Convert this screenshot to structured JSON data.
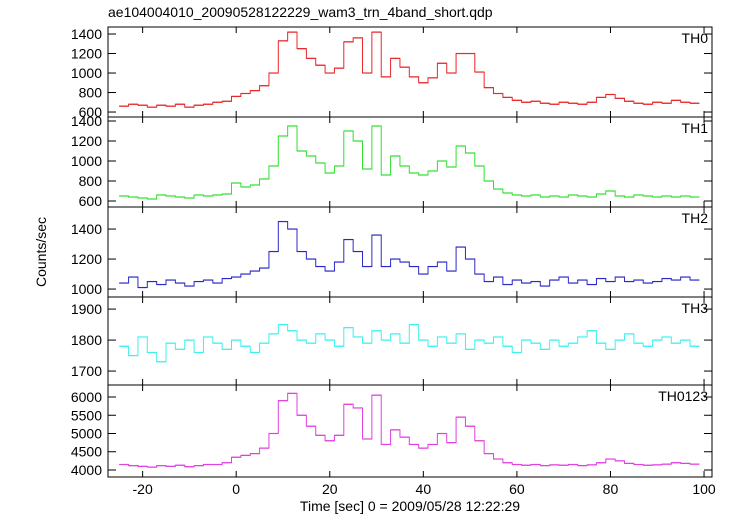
{
  "chart_data": {
    "type": "step",
    "title": "ae104004010_20090528122229_wam3_trn_4band_short.qdp",
    "x_label": "Time [sec] 0 = 2009/05/28 12:22:29",
    "y_label": "Counts/sec",
    "xlim": [
      -27.4,
      101.7
    ],
    "xticks": [
      -20,
      0,
      20,
      40,
      60,
      80,
      100
    ],
    "x": [
      -24,
      -22,
      -20,
      -18,
      -16,
      -14,
      -12,
      -10,
      -8,
      -6,
      -4,
      -2,
      0,
      2,
      4,
      6,
      8,
      10,
      12,
      14,
      16,
      18,
      20,
      22,
      24,
      26,
      28,
      30,
      32,
      34,
      36,
      38,
      40,
      42,
      44,
      46,
      48,
      50,
      52,
      54,
      56,
      58,
      60,
      62,
      64,
      66,
      68,
      70,
      72,
      74,
      76,
      78,
      80,
      82,
      84,
      86,
      88,
      90,
      92,
      94,
      96,
      98
    ],
    "panels": [
      {
        "name": "TH0",
        "color": "#e8282a",
        "ylim": [
          549,
          1472
        ],
        "yticks": [
          600,
          800,
          1000,
          1200,
          1400
        ],
        "values": [
          660,
          680,
          670,
          650,
          670,
          660,
          680,
          650,
          670,
          680,
          700,
          710,
          760,
          790,
          820,
          870,
          1000,
          1330,
          1420,
          1250,
          1150,
          1080,
          1000,
          1050,
          1320,
          1360,
          1000,
          1420,
          960,
          1150,
          1060,
          960,
          900,
          950,
          1100,
          1000,
          1200,
          1200,
          1010,
          850,
          790,
          750,
          720,
          700,
          710,
          690,
          680,
          700,
          690,
          680,
          700,
          750,
          780,
          740,
          710,
          690,
          680,
          700,
          690,
          720,
          700,
          690
        ]
      },
      {
        "name": "TH1",
        "color": "#2ee02e",
        "ylim": [
          540,
          1440
        ],
        "yticks": [
          600,
          800,
          1000,
          1200,
          1400
        ],
        "values": [
          650,
          640,
          630,
          620,
          660,
          650,
          640,
          630,
          660,
          650,
          660,
          670,
          780,
          740,
          760,
          820,
          950,
          1250,
          1350,
          1100,
          1050,
          980,
          880,
          950,
          1300,
          1200,
          920,
          1350,
          860,
          1050,
          950,
          880,
          860,
          900,
          1000,
          940,
          1150,
          1080,
          950,
          800,
          720,
          680,
          660,
          650,
          660,
          640,
          650,
          640,
          660,
          650,
          640,
          670,
          700,
          650,
          640,
          660,
          650,
          640,
          650,
          640,
          650,
          640
        ]
      },
      {
        "name": "TH2",
        "color": "#2a2ac8",
        "ylim": [
          947,
          1547
        ],
        "yticks": [
          1000,
          1200,
          1400
        ],
        "values": [
          1040,
          1080,
          1010,
          1050,
          1030,
          1060,
          1040,
          1020,
          1050,
          1060,
          1040,
          1070,
          1080,
          1100,
          1120,
          1140,
          1250,
          1450,
          1400,
          1250,
          1200,
          1150,
          1120,
          1180,
          1330,
          1250,
          1150,
          1360,
          1150,
          1200,
          1180,
          1150,
          1100,
          1150,
          1180,
          1120,
          1280,
          1200,
          1100,
          1050,
          1080,
          1030,
          1060,
          1040,
          1050,
          1020,
          1060,
          1080,
          1040,
          1060,
          1030,
          1070,
          1050,
          1080,
          1050,
          1060,
          1040,
          1050,
          1070,
          1060,
          1080,
          1060
        ]
      },
      {
        "name": "TH3",
        "color": "#3ef0f0",
        "ylim": [
          1655,
          1939
        ],
        "yticks": [
          1700,
          1800,
          1900
        ],
        "values": [
          1780,
          1750,
          1810,
          1760,
          1730,
          1790,
          1770,
          1800,
          1760,
          1810,
          1790,
          1770,
          1800,
          1780,
          1760,
          1790,
          1820,
          1850,
          1830,
          1800,
          1790,
          1820,
          1800,
          1780,
          1840,
          1810,
          1790,
          1830,
          1800,
          1820,
          1790,
          1850,
          1800,
          1780,
          1810,
          1790,
          1820,
          1770,
          1800,
          1790,
          1810,
          1780,
          1760,
          1800,
          1790,
          1770,
          1800,
          1780,
          1790,
          1810,
          1830,
          1790,
          1770,
          1800,
          1820,
          1790,
          1780,
          1800,
          1810,
          1790,
          1800,
          1780
        ]
      },
      {
        "name": "TH0123",
        "color": "#e040e0",
        "ylim": [
          3808,
          6329
        ],
        "yticks": [
          4000,
          4500,
          5000,
          5500,
          6000
        ],
        "values": [
          4150,
          4120,
          4100,
          4080,
          4120,
          4100,
          4130,
          4090,
          4120,
          4150,
          4150,
          4200,
          4350,
          4400,
          4450,
          4600,
          5000,
          5900,
          6100,
          5500,
          5200,
          4950,
          4800,
          4950,
          5800,
          5700,
          4850,
          6050,
          4700,
          5100,
          4900,
          4700,
          4600,
          4700,
          5000,
          4750,
          5450,
          5200,
          4800,
          4450,
          4300,
          4200,
          4150,
          4130,
          4150,
          4120,
          4140,
          4130,
          4150,
          4120,
          4140,
          4200,
          4300,
          4250,
          4180,
          4150,
          4130,
          4140,
          4160,
          4200,
          4180,
          4160
        ]
      }
    ]
  }
}
